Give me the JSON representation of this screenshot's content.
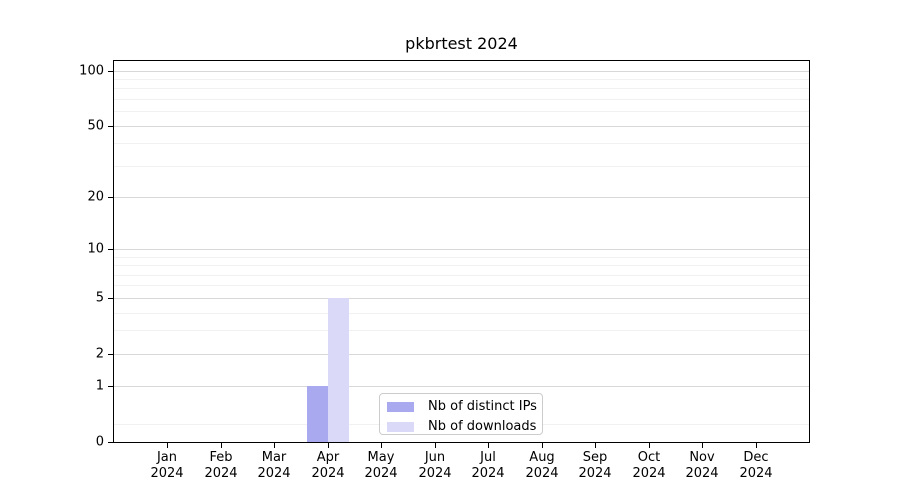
{
  "figure": {
    "background": "#ffffff"
  },
  "chart_data": {
    "type": "bar",
    "title": "pkbrtest 2024",
    "categories": [
      "Jan",
      "Feb",
      "Mar",
      "Apr",
      "May",
      "Jun",
      "Jul",
      "Aug",
      "Sep",
      "Oct",
      "Nov",
      "Dec"
    ],
    "category_year_label": "2024",
    "series": [
      {
        "name": "Nb of distinct IPs",
        "color": "#a9a9f0",
        "values": [
          0,
          0,
          0,
          1,
          0,
          0,
          0,
          0,
          0,
          0,
          0,
          0
        ]
      },
      {
        "name": "Nb of downloads",
        "color": "#dadaf8",
        "values": [
          0,
          0,
          0,
          5,
          0,
          0,
          0,
          0,
          0,
          0,
          0,
          0
        ]
      }
    ],
    "xlabel": "",
    "ylabel": "",
    "yscale": "log1p",
    "ylim": [
      0,
      113
    ],
    "yticks_major": [
      0,
      1,
      2,
      5,
      10,
      20,
      50,
      100
    ],
    "yticks_minor": [
      0.25,
      3,
      4,
      6,
      7,
      8,
      9,
      30,
      40,
      60,
      70,
      80,
      90
    ],
    "grid": "horizontal",
    "legend_position": "lower center",
    "colors": {
      "grid_major": "#d8d8d8",
      "grid_minor": "#f1f1f1",
      "axis_frame": "#000000",
      "text": "#000000"
    }
  }
}
